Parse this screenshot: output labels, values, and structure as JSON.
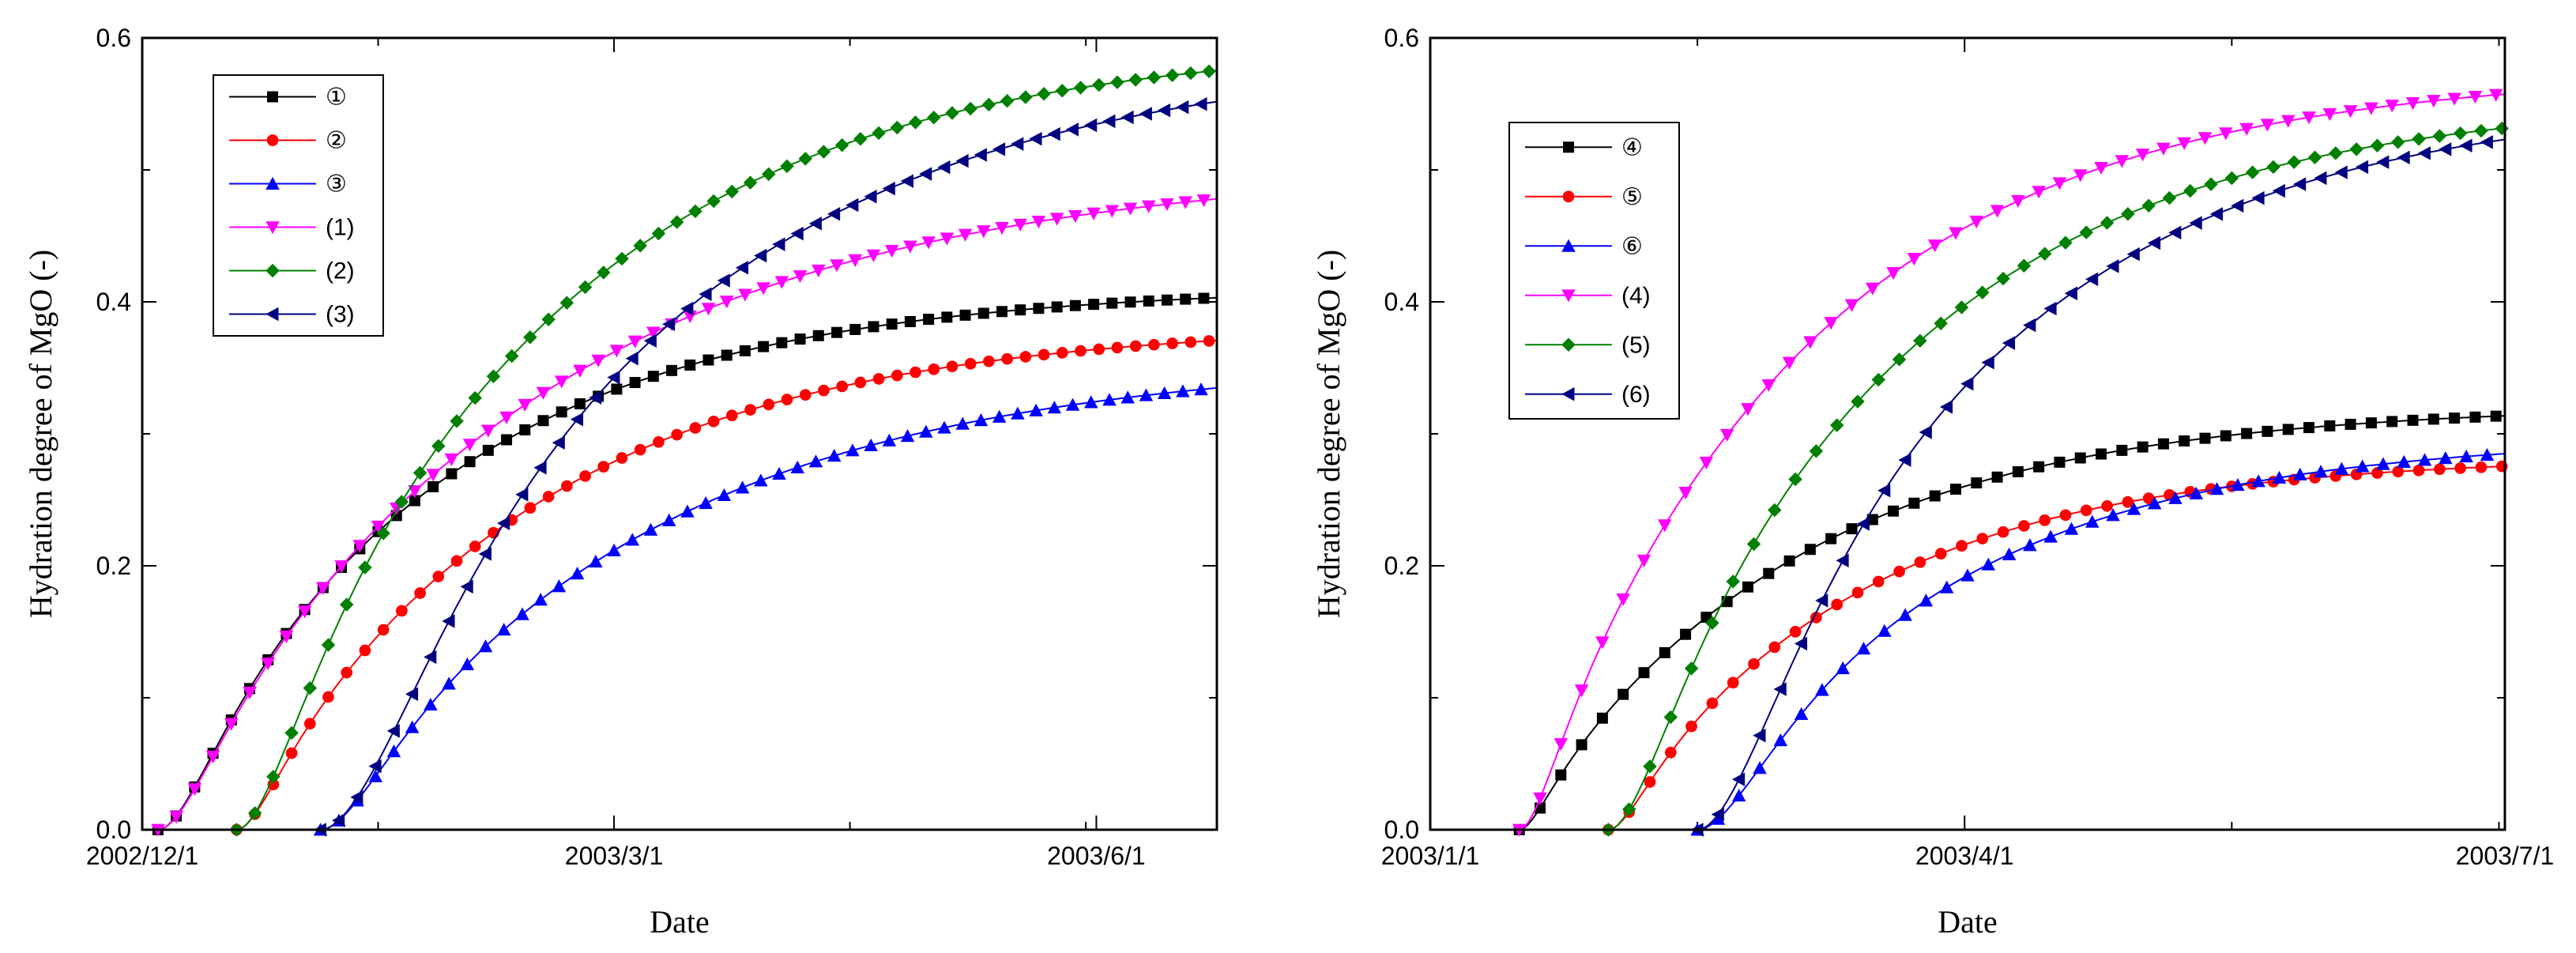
{
  "chart_data": [
    {
      "type": "line",
      "xlabel": "Date",
      "ylabel": "Hydration degree of MgO (-)",
      "xlim": [
        0,
        205
      ],
      "ylim": [
        0,
        0.6
      ],
      "yticks": [
        "0.0",
        "0.2",
        "0.4",
        "0.6"
      ],
      "xticks": [
        {
          "day": 0,
          "label": "2002/12/1"
        },
        {
          "day": 90,
          "label": "2003/3/1"
        },
        {
          "day": 182,
          "label": "2003/6/1"
        }
      ],
      "legend_position": "top-left",
      "series": [
        {
          "name": "①",
          "color": "#000000",
          "marker": "square",
          "start": 3,
          "rise": 7,
          "vmax": 0.412,
          "k": 0.019
        },
        {
          "name": "②",
          "color": "#ff0000",
          "marker": "circle",
          "start": 18,
          "rise": 5,
          "vmax": 0.384,
          "k": 0.018
        },
        {
          "name": "③",
          "color": "#0000ff",
          "marker": "triangle-up",
          "start": 34,
          "rise": 8,
          "vmax": 0.358,
          "k": 0.016
        },
        {
          "name": "(1)",
          "color": "#ff00ff",
          "marker": "triangle-down",
          "start": 3,
          "rise": 7,
          "vmax": 0.505,
          "k": 0.0145
        },
        {
          "name": "(2)",
          "color": "#008000",
          "marker": "diamond",
          "start": 18,
          "rise": 8,
          "vmax": 0.598,
          "k": 0.0175
        },
        {
          "name": "(3)",
          "color": "#000080",
          "marker": "triangle-left",
          "start": 34,
          "rise": 14,
          "vmax": 0.59,
          "k": 0.016
        }
      ]
    },
    {
      "type": "line",
      "xlabel": "Date",
      "ylabel": "Hydration degree of MgO (-)",
      "xlim": [
        0,
        181
      ],
      "ylim": [
        0,
        0.6
      ],
      "yticks": [
        "0.0",
        "0.2",
        "0.4",
        "0.6"
      ],
      "xticks": [
        {
          "day": 0,
          "label": "2003/1/1"
        },
        {
          "day": 90,
          "label": "2003/4/1"
        },
        {
          "day": 181,
          "label": "2003/7/1"
        }
      ],
      "legend_position": "top-left",
      "series": [
        {
          "name": "④",
          "color": "#000000",
          "marker": "square",
          "start": 15,
          "rise": 3,
          "vmax": 0.322,
          "k": 0.022
        },
        {
          "name": "⑤",
          "color": "#ff0000",
          "marker": "circle",
          "start": 30,
          "rise": 4,
          "vmax": 0.283,
          "k": 0.024
        },
        {
          "name": "⑥",
          "color": "#0000ff",
          "marker": "triangle-up",
          "start": 45,
          "rise": 8,
          "vmax": 0.298,
          "k": 0.023
        },
        {
          "name": "(4)",
          "color": "#ff00ff",
          "marker": "triangle-down",
          "start": 15,
          "rise": 4,
          "vmax": 0.575,
          "k": 0.021
        },
        {
          "name": "(5)",
          "color": "#008000",
          "marker": "diamond",
          "start": 30,
          "rise": 7,
          "vmax": 0.555,
          "k": 0.021
        },
        {
          "name": "(6)",
          "color": "#000080",
          "marker": "triangle-left",
          "start": 45,
          "rise": 10,
          "vmax": 0.555,
          "k": 0.021
        }
      ]
    }
  ]
}
